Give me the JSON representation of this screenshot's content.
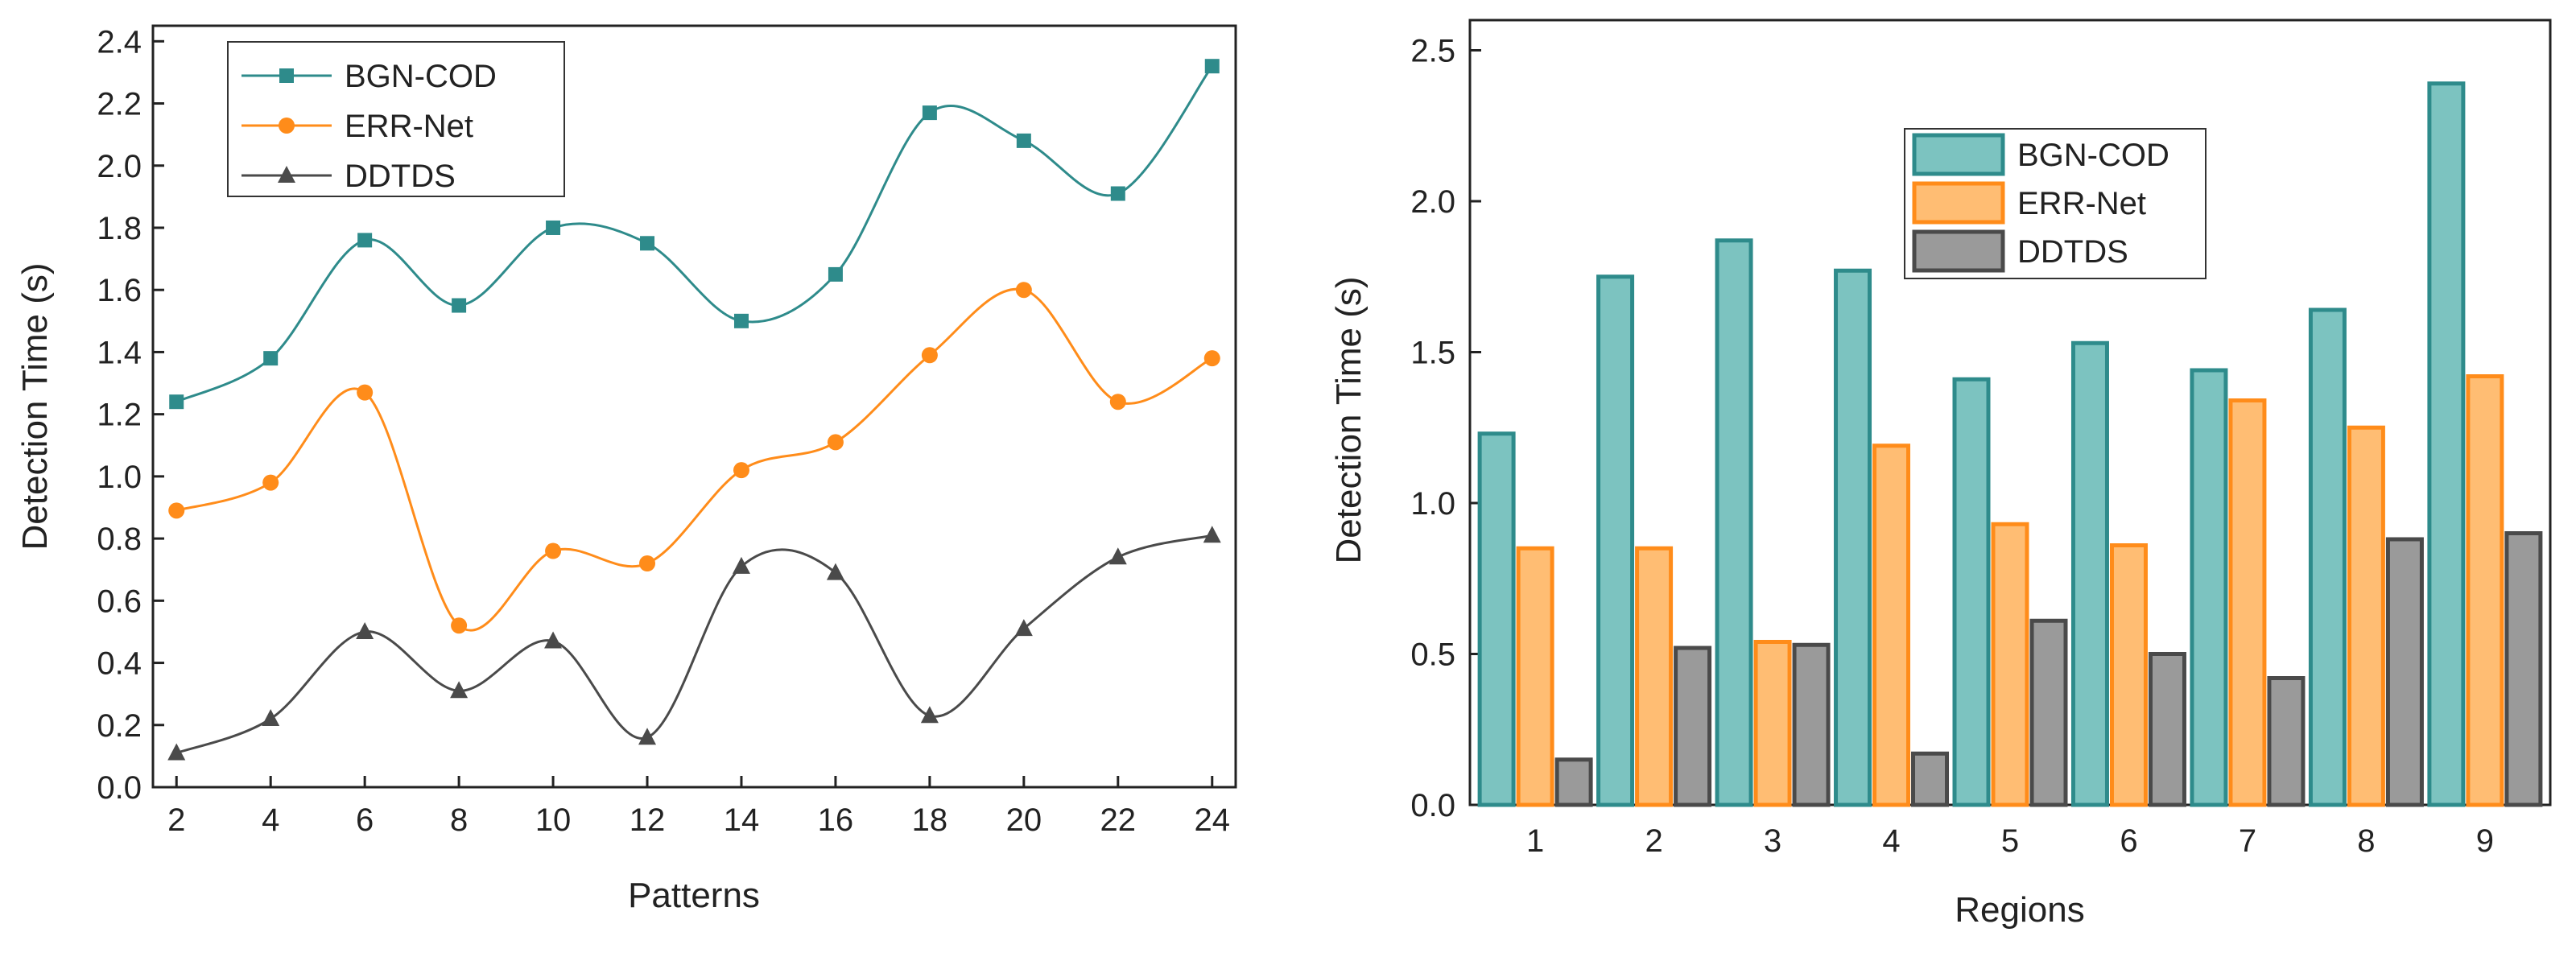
{
  "colors": {
    "teal": "#2e8b8b",
    "teal_fill": "#7cc3c0",
    "orange": "#ff8c1a",
    "orange_fill": "#ffbd73",
    "gray": "#4a4a4a",
    "gray_fill": "#9a9a9a"
  },
  "chart_data": [
    {
      "type": "line",
      "xlabel": "Patterns",
      "ylabel": "Detection Time (s)",
      "xlim": [
        1.5,
        24.5
      ],
      "ylim": [
        0,
        2.45
      ],
      "xticks": [
        "2",
        "4",
        "6",
        "8",
        "10",
        "12",
        "14",
        "16",
        "18",
        "20",
        "22",
        "24"
      ],
      "yticks": [
        "0.0",
        "0.2",
        "0.4",
        "0.6",
        "0.8",
        "1.0",
        "1.2",
        "1.4",
        "1.6",
        "1.8",
        "2.0",
        "2.2",
        "2.4"
      ],
      "x": [
        2,
        4,
        6,
        8,
        10,
        12,
        14,
        16,
        18,
        20,
        22,
        24
      ],
      "legend_position": "top-left",
      "series": [
        {
          "name": "BGN-COD",
          "marker": "square",
          "color": "#2e8b8b",
          "values": [
            1.24,
            1.38,
            1.76,
            1.55,
            1.8,
            1.75,
            1.5,
            1.65,
            2.17,
            2.08,
            1.91,
            2.32
          ]
        },
        {
          "name": "ERR-Net",
          "marker": "circle",
          "color": "#ff8c1a",
          "values": [
            0.89,
            0.98,
            1.27,
            0.52,
            0.76,
            0.72,
            1.02,
            1.11,
            1.39,
            1.6,
            1.24,
            1.38
          ]
        },
        {
          "name": "DDTDS",
          "marker": "triangle",
          "color": "#4a4a4a",
          "values": [
            0.11,
            0.22,
            0.5,
            0.31,
            0.47,
            0.16,
            0.71,
            0.69,
            0.23,
            0.51,
            0.74,
            0.81
          ]
        }
      ]
    },
    {
      "type": "bar",
      "xlabel": "Regions",
      "ylabel": "Detection Time (s)",
      "ylim": [
        0,
        2.6
      ],
      "categories": [
        "1",
        "2",
        "3",
        "4",
        "5",
        "6",
        "7",
        "8",
        "9"
      ],
      "yticks": [
        "0.0",
        "0.5",
        "1.0",
        "1.5",
        "2.0",
        "2.5"
      ],
      "legend_position": "top-center",
      "series": [
        {
          "name": "BGN-COD",
          "color": "#2e8b8b",
          "fill": "#7cc3c0",
          "values": [
            1.23,
            1.75,
            1.87,
            1.77,
            1.41,
            1.53,
            1.44,
            1.64,
            2.39
          ]
        },
        {
          "name": "ERR-Net",
          "color": "#ff8c1a",
          "fill": "#ffbd73",
          "values": [
            0.85,
            0.85,
            0.54,
            1.19,
            0.93,
            0.86,
            1.34,
            1.25,
            1.42
          ]
        },
        {
          "name": "DDTDS",
          "color": "#4a4a4a",
          "fill": "#9a9a9a",
          "values": [
            0.15,
            0.52,
            0.53,
            0.17,
            0.61,
            0.5,
            0.42,
            0.88,
            0.9
          ]
        }
      ]
    }
  ]
}
